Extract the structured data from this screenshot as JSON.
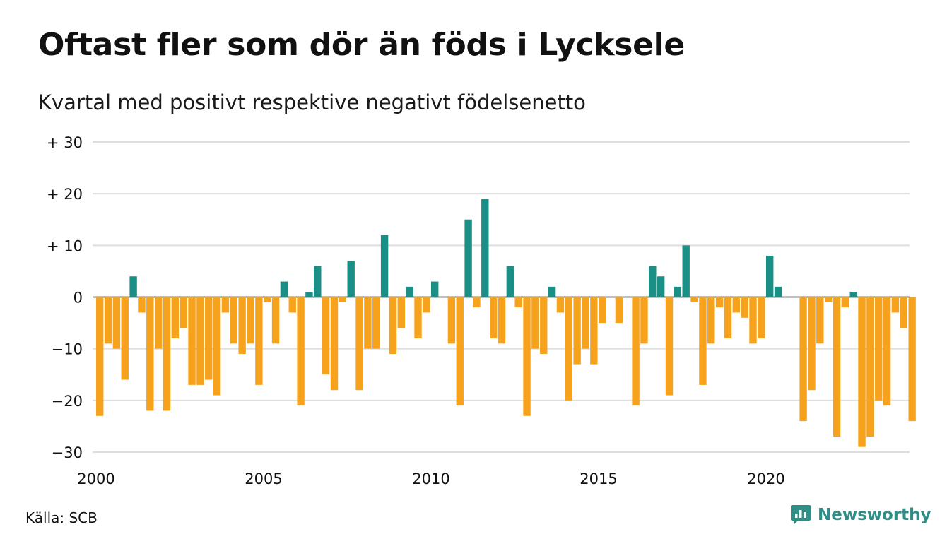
{
  "header": {
    "title": "Oftast fler som dör än föds i Lycksele",
    "subtitle": "Kvartal med positivt respektive negativt födelsenetto"
  },
  "footer": {
    "source": "Källa: SCB",
    "brand": "Newsworthy",
    "brand_icon": "chart-bubble-icon"
  },
  "colors": {
    "positive": "#1a8f86",
    "negative": "#f7a21c",
    "grid": "#dedede",
    "text": "#111111",
    "brand": "#2f8f87"
  },
  "chart_data": {
    "type": "bar",
    "x_start": 2000,
    "periods_per_year": 4,
    "x_ticks": [
      "2000",
      "2005",
      "2010",
      "2015",
      "2020"
    ],
    "y_ticks": [
      "+ 30",
      "+ 20",
      "+ 10",
      "0",
      "−10",
      "−20",
      "−30"
    ],
    "ylim": [
      -30,
      30
    ],
    "grid": true,
    "values": [
      -23,
      -9,
      -10,
      -16,
      4,
      -3,
      -22,
      -10,
      -22,
      -8,
      -6,
      -17,
      -17,
      -16,
      -19,
      -3,
      -9,
      -11,
      -9,
      -17,
      -1,
      -9,
      3,
      -3,
      -21,
      1,
      6,
      -15,
      -18,
      -1,
      7,
      -18,
      -10,
      -10,
      12,
      -11,
      -6,
      2,
      -8,
      -3,
      3,
      0,
      -9,
      -21,
      15,
      -2,
      19,
      -8,
      -9,
      6,
      -2,
      -23,
      -10,
      -11,
      2,
      -3,
      -20,
      -13,
      -10,
      -13,
      -5,
      0,
      -5,
      0,
      -21,
      -9,
      6,
      4,
      -19,
      2,
      10,
      -1,
      -17,
      -9,
      -2,
      -8,
      -3,
      -4,
      -9,
      -8,
      8,
      2,
      0,
      0,
      -24,
      -18,
      -9,
      -1,
      -27,
      -2,
      1,
      -29,
      -27,
      -20,
      -21,
      -3,
      -6,
      -24
    ]
  }
}
